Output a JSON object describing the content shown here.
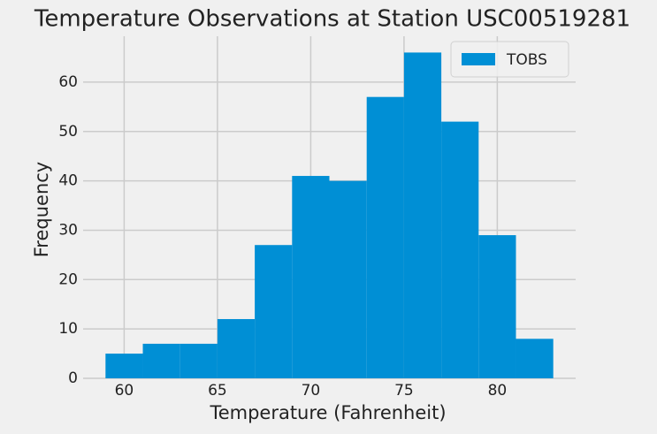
{
  "chart_data": {
    "type": "histogram",
    "title": "Temperature Observations at Station USC00519281",
    "x_label": "Temperature (Fahrenheit)",
    "y_label": "Frequency",
    "bins": [
      59,
      61,
      63,
      65,
      67,
      69,
      71,
      73,
      75,
      77,
      79,
      81,
      83
    ],
    "series": [
      {
        "name": "TOBS",
        "color": "#008fd5",
        "values": [
          5,
          7,
          7,
          12,
          27,
          41,
          40,
          57,
          66,
          52,
          29,
          8
        ]
      }
    ],
    "xlim": [
      57.8,
      84.2
    ],
    "ylim": [
      0,
      69.3
    ],
    "xticks": [
      60,
      65,
      70,
      75,
      80
    ],
    "yticks": [
      0,
      10,
      20,
      30,
      40,
      50,
      60
    ],
    "grid": true,
    "legend": "upper right"
  }
}
